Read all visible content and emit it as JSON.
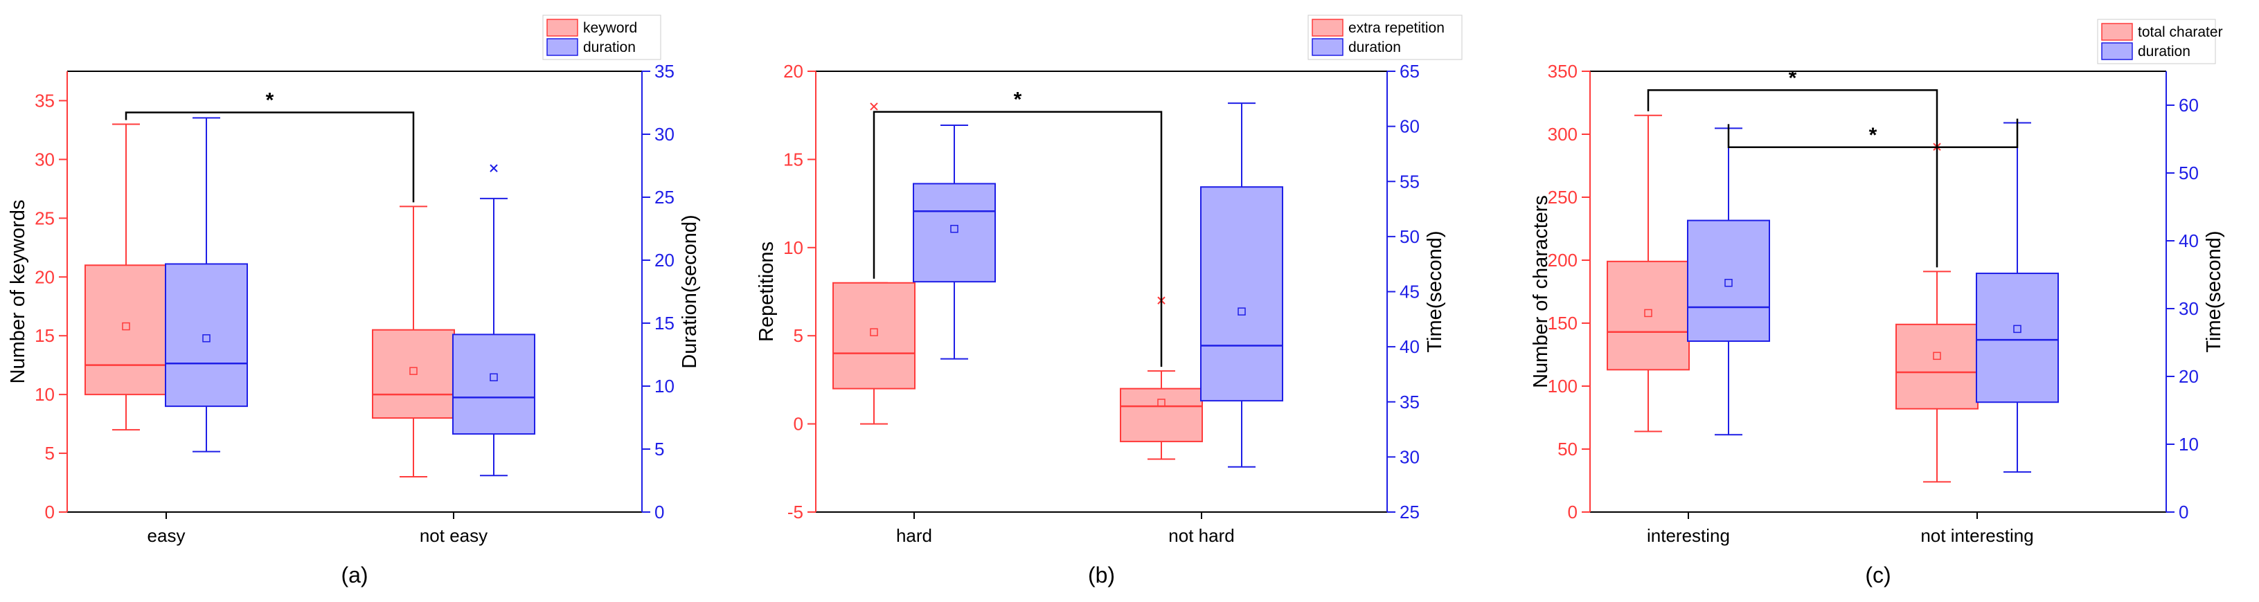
{
  "colors": {
    "red_stroke": "#FF3B3B",
    "red_fill": "#FFB0B0",
    "blue_stroke": "#1E1EE6",
    "blue_fill": "#AFAFFF",
    "black": "#000000"
  },
  "chart_data": [
    {
      "type": "box",
      "label": "(a)",
      "categories": [
        "easy",
        "not easy"
      ],
      "legend": [
        "keyword",
        "duration"
      ],
      "legend_position": "top-right",
      "left_axis": {
        "label": "Number of keywords",
        "range": [
          0,
          37.5
        ],
        "ticks": [
          "0",
          "5",
          "10",
          "15",
          "20",
          "25",
          "30",
          "35"
        ]
      },
      "right_axis": {
        "label": "Duration(second)",
        "range": [
          0,
          35
        ],
        "ticks": [
          "0",
          "5",
          "10",
          "15",
          "20",
          "25",
          "30",
          "35"
        ]
      },
      "series": [
        {
          "name": "keyword",
          "axis": "left",
          "color": "red",
          "boxes": [
            {
              "whisker_low": 7,
              "q1": 10,
              "median": 12.5,
              "q3": 21,
              "whisker_high": 33,
              "mean": 15.8,
              "outliers": []
            },
            {
              "whisker_low": 3,
              "q1": 8,
              "median": 10,
              "q3": 15.5,
              "whisker_high": 26,
              "mean": 12,
              "outliers": []
            }
          ]
        },
        {
          "name": "duration",
          "axis": "right",
          "color": "blue",
          "boxes": [
            {
              "whisker_low": 4.8,
              "q1": 8.4,
              "median": 11.8,
              "q3": 19.7,
              "whisker_high": 31.3,
              "mean": 13.8,
              "outliers": []
            },
            {
              "whisker_low": 2.9,
              "q1": 6.2,
              "median": 9.1,
              "q3": 14.1,
              "whisker_high": 24.9,
              "mean": 10.7,
              "outliers": [
                27.3
              ]
            }
          ]
        }
      ],
      "significance": [
        {
          "label": "*",
          "series": [
            "keyword",
            "keyword"
          ],
          "from": 0,
          "to": 1,
          "level": 34
        }
      ]
    },
    {
      "type": "box",
      "label": "(b)",
      "categories": [
        "hard",
        "not hard"
      ],
      "legend": [
        "extra repetition",
        "duration"
      ],
      "legend_position": "top-right",
      "left_axis": {
        "label": "Repetitions",
        "range": [
          -5,
          20
        ],
        "ticks": [
          "-5",
          "0",
          "5",
          "10",
          "15",
          "20"
        ]
      },
      "right_axis": {
        "label": "Time(second)",
        "range": [
          25,
          65
        ],
        "ticks": [
          "25",
          "30",
          "35",
          "40",
          "45",
          "50",
          "55",
          "60",
          "65"
        ]
      },
      "series": [
        {
          "name": "extra repetition",
          "axis": "left",
          "color": "red",
          "boxes": [
            {
              "whisker_low": 0,
              "q1": 2,
              "median": 4,
              "q3": 8,
              "whisker_high": 8,
              "mean": 5.2,
              "outliers": [
                18
              ]
            },
            {
              "whisker_low": -2,
              "q1": -1,
              "median": 1,
              "q3": 2,
              "whisker_high": 3,
              "mean": 1.2,
              "outliers": [
                7
              ]
            }
          ]
        },
        {
          "name": "duration",
          "axis": "right",
          "color": "blue",
          "boxes": [
            {
              "whisker_low": 38.9,
              "q1": 45.9,
              "median": 52.3,
              "q3": 54.8,
              "whisker_high": 60.1,
              "mean": 50.7,
              "outliers": []
            },
            {
              "whisker_low": 29.1,
              "q1": 35.1,
              "median": 40.1,
              "q3": 54.5,
              "whisker_high": 62.1,
              "mean": 43.2,
              "outliers": []
            }
          ]
        }
      ],
      "significance": [
        {
          "label": "*",
          "series": [
            "extra repetition",
            "extra repetition"
          ],
          "from": 0,
          "to": 1,
          "level": 17.7
        }
      ]
    },
    {
      "type": "box",
      "label": "(c)",
      "categories": [
        "interesting",
        "not interesting"
      ],
      "legend": [
        "total charater",
        "duration"
      ],
      "legend_position": "top-right",
      "left_axis": {
        "label": "Number of characters",
        "range": [
          0,
          350
        ],
        "ticks": [
          "0",
          "50",
          "100",
          "150",
          "200",
          "250",
          "300",
          "350"
        ]
      },
      "right_axis": {
        "label": "Time(second)",
        "range": [
          0,
          65
        ],
        "ticks": [
          "0",
          "10",
          "20",
          "30",
          "40",
          "50",
          "60"
        ]
      },
      "series": [
        {
          "name": "total charater",
          "axis": "left",
          "color": "red",
          "boxes": [
            {
              "whisker_low": 64,
              "q1": 113,
              "median": 143,
              "q3": 199,
              "whisker_high": 315,
              "mean": 158,
              "outliers": []
            },
            {
              "whisker_low": 24,
              "q1": 82,
              "median": 111,
              "q3": 149,
              "whisker_high": 191,
              "mean": 124,
              "outliers": [
                290
              ]
            }
          ]
        },
        {
          "name": "duration",
          "axis": "right",
          "color": "blue",
          "boxes": [
            {
              "whisker_low": 11.4,
              "q1": 25.2,
              "median": 30.2,
              "q3": 43.0,
              "whisker_high": 56.6,
              "mean": 33.8,
              "outliers": []
            },
            {
              "whisker_low": 5.9,
              "q1": 16.2,
              "median": 25.4,
              "q3": 35.2,
              "whisker_high": 57.4,
              "mean": 27.0,
              "outliers": []
            }
          ]
        }
      ],
      "significance": [
        {
          "label": "*",
          "series": [
            "total charater",
            "total charater"
          ],
          "from": 0,
          "to": 1,
          "level": 335
        },
        {
          "label": "*",
          "series": [
            "duration",
            "duration"
          ],
          "from": 0,
          "to": 1,
          "level": 53.8
        }
      ]
    }
  ]
}
